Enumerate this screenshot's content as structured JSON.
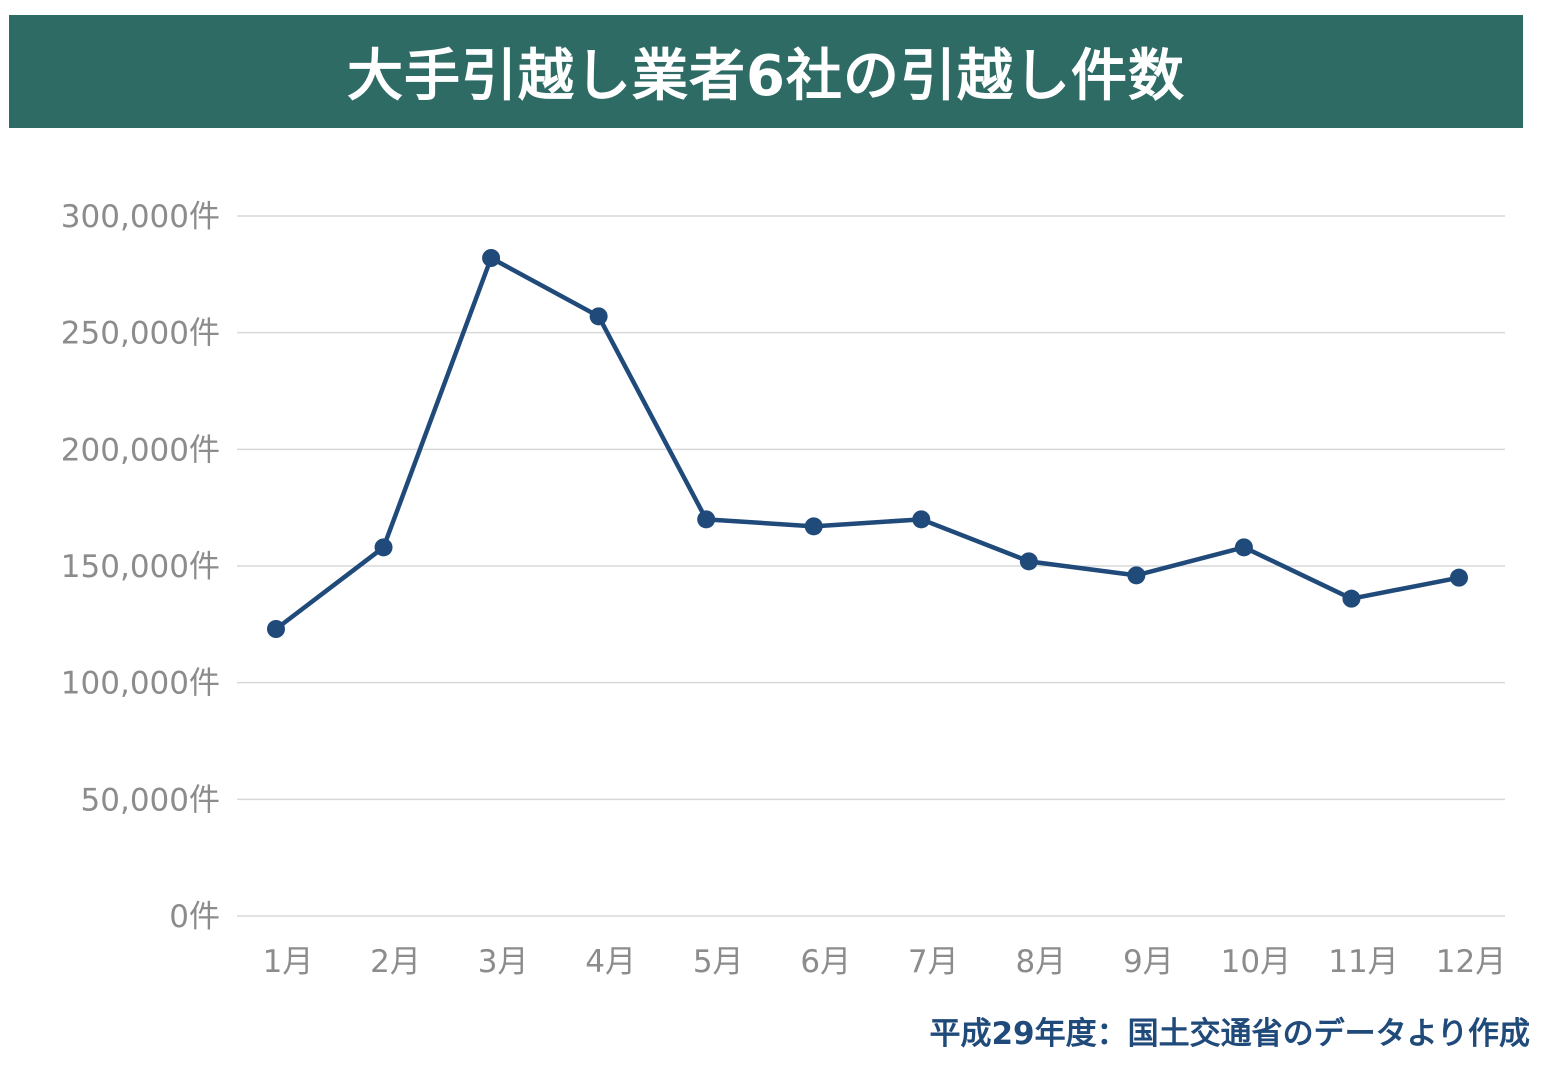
{
  "chart_data": {
    "type": "line",
    "title": "大手引越し業者6社の引越し件数",
    "categories": [
      "1月",
      "2月",
      "3月",
      "4月",
      "5月",
      "6月",
      "7月",
      "8月",
      "9月",
      "10月",
      "11月",
      "12月"
    ],
    "series": [
      {
        "values": [
          123000,
          158000,
          282000,
          257000,
          170000,
          167000,
          170000,
          152000,
          146000,
          158000,
          136000,
          145000
        ]
      }
    ],
    "ylim": [
      0,
      300000
    ],
    "y_ticks": [
      0,
      50000,
      100000,
      150000,
      200000,
      250000,
      300000
    ],
    "y_tick_labels": [
      "0件",
      "50,000件",
      "100,000件",
      "150,000件",
      "200,000件",
      "250,000件",
      "300,000件"
    ],
    "grid": true,
    "colors": {
      "line": "#1f4a7a",
      "banner": "#2e6b65",
      "grid": "#d9d9d9",
      "tick_text": "#8c8c8c",
      "source_text": "#1f4a7a"
    }
  },
  "source_note": "平成29年度：国土交通省のデータより作成"
}
